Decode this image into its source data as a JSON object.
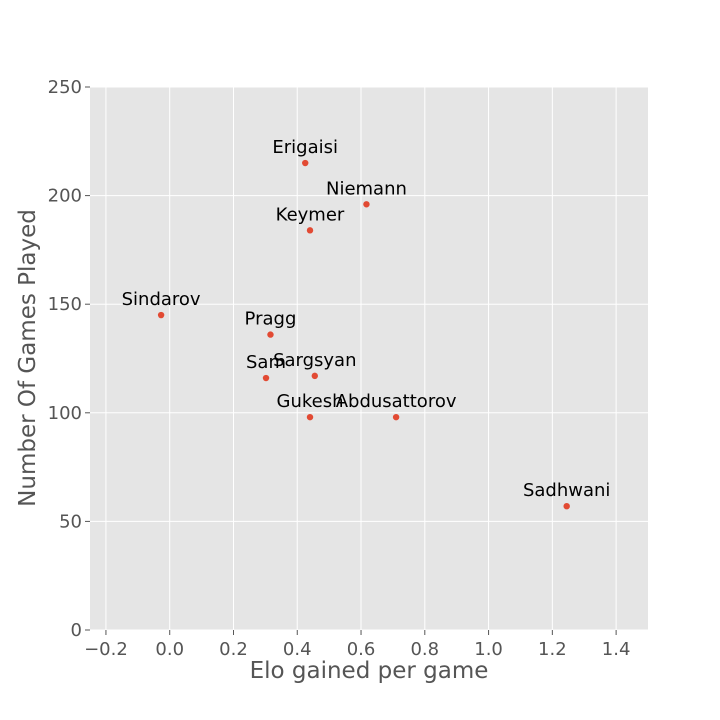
{
  "chart_data": {
    "type": "scatter",
    "title": "",
    "xlabel": "Elo gained per game",
    "ylabel": "Number Of Games Played",
    "xlim": [
      -0.25,
      1.5
    ],
    "ylim": [
      0,
      250
    ],
    "xticks": [
      -0.2,
      0.0,
      0.2,
      0.4,
      0.6,
      0.8,
      1.0,
      1.2,
      1.4
    ],
    "xtick_labels": [
      "−0.2",
      "0.0",
      "0.2",
      "0.4",
      "0.6",
      "0.8",
      "1.0",
      "1.2",
      "1.4"
    ],
    "yticks": [
      0,
      50,
      100,
      150,
      200,
      250
    ],
    "ytick_labels": [
      "0",
      "50",
      "100",
      "150",
      "200",
      "250"
    ],
    "grid": true,
    "background": "#e5e5e5",
    "point_color": "#e24a33",
    "points": [
      {
        "label": "Erigaisi",
        "x": 0.425,
        "y": 215
      },
      {
        "label": "Niemann",
        "x": 0.617,
        "y": 196
      },
      {
        "label": "Keymer",
        "x": 0.44,
        "y": 184
      },
      {
        "label": "Sindarov",
        "x": -0.027,
        "y": 145
      },
      {
        "label": "Pragg",
        "x": 0.316,
        "y": 136
      },
      {
        "label": "Sargsyan",
        "x": 0.455,
        "y": 117
      },
      {
        "label": "Sam",
        "x": 0.302,
        "y": 116
      },
      {
        "label": "Gukesh",
        "x": 0.44,
        "y": 98
      },
      {
        "label": "Abdusattorov",
        "x": 0.71,
        "y": 98
      },
      {
        "label": "Sadhwani",
        "x": 1.245,
        "y": 57
      }
    ]
  }
}
